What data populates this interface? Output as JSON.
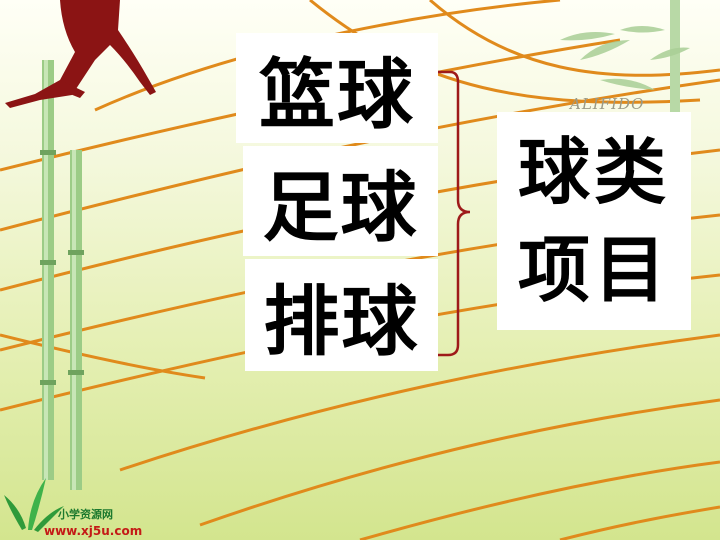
{
  "slide": {
    "sports": [
      "篮球",
      "足球",
      "排球"
    ],
    "category_line1": "球类",
    "category_line2": "项目",
    "watermark": "ALIFIDO",
    "logo_name": "小学资源网",
    "logo_url": "www.xj5u.com"
  },
  "colors": {
    "track_line": "#e08a1c",
    "runner": "#8b1414",
    "brace": "#9e1a1a",
    "bamboo": "#8ac17a"
  },
  "icons": [
    "runner-silhouette",
    "bamboo-stalk",
    "bamboo-leaves",
    "leaf-logo"
  ]
}
